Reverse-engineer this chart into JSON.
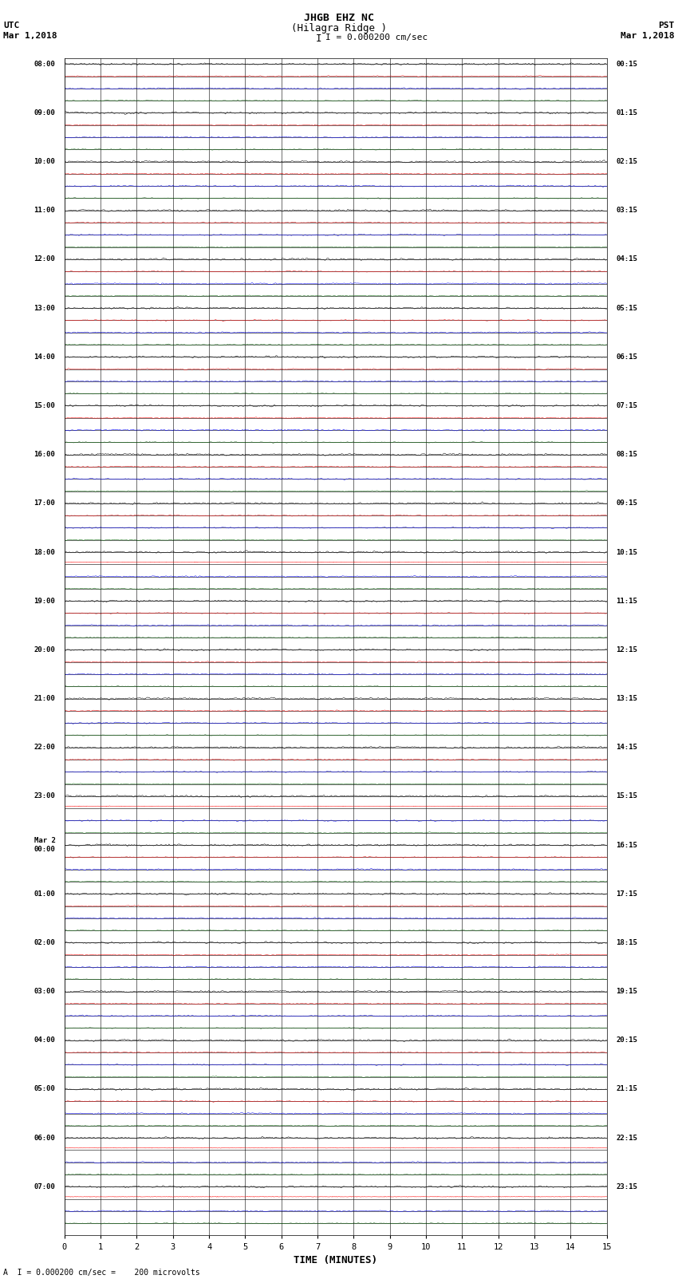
{
  "title_line1": "JHGB EHZ NC",
  "title_line2": "(Hilagra Ridge )",
  "scale_text": "I = 0.000200 cm/sec",
  "utc_label": "UTC",
  "utc_date": "Mar 1,2018",
  "pst_label": "PST",
  "pst_date": "Mar 1,2018",
  "xlabel": "TIME (MINUTES)",
  "footnote": "A  I = 0.000200 cm/sec =    200 microvolts",
  "left_times": [
    "08:00",
    "09:00",
    "10:00",
    "11:00",
    "12:00",
    "13:00",
    "14:00",
    "15:00",
    "16:00",
    "17:00",
    "18:00",
    "19:00",
    "20:00",
    "21:00",
    "22:00",
    "23:00",
    "Mar 2\n00:00",
    "01:00",
    "02:00",
    "03:00",
    "04:00",
    "05:00",
    "06:00",
    "07:00"
  ],
  "right_times": [
    "00:15",
    "01:15",
    "02:15",
    "03:15",
    "04:15",
    "05:15",
    "06:15",
    "07:15",
    "08:15",
    "09:15",
    "10:15",
    "11:15",
    "12:15",
    "13:15",
    "14:15",
    "15:15",
    "16:15",
    "17:15",
    "18:15",
    "19:15",
    "20:15",
    "21:15",
    "22:15",
    "23:15"
  ],
  "n_hours": 24,
  "rows_per_hour": 4,
  "minutes": 15,
  "bg_color": "#ffffff",
  "trace_colors": [
    "#000000",
    "#ff0000",
    "#0000ff",
    "#006400"
  ],
  "noise_amps": [
    0.1,
    0.06,
    0.07,
    0.05
  ],
  "tick_positions": [
    0,
    1,
    2,
    3,
    4,
    5,
    6,
    7,
    8,
    9,
    10,
    11,
    12,
    13,
    14,
    15
  ],
  "big_signal_rows": [
    40,
    41,
    60,
    61,
    62,
    88,
    89,
    90,
    91,
    92,
    93
  ],
  "seed": 12345
}
